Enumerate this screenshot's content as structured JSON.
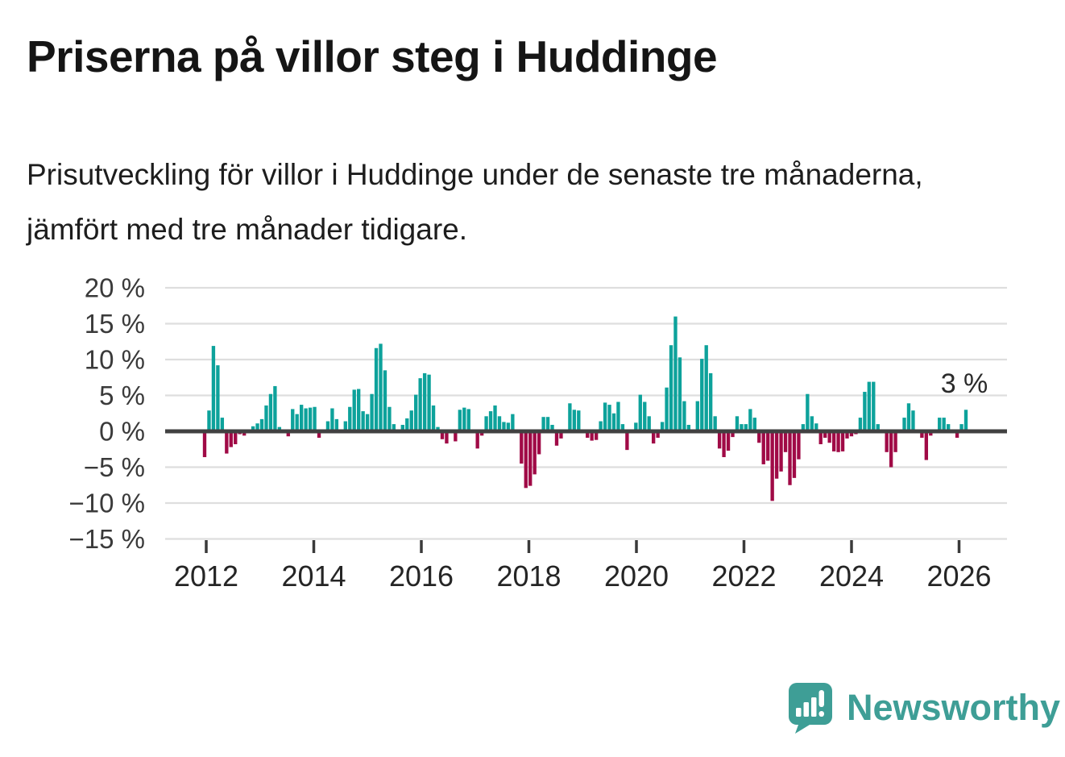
{
  "header": {
    "title": "Priserna på villor steg i Huddinge",
    "subtitle": "Prisutveckling för villor i Huddinge under de senaste tre månaderna, jämfört med tre månader tidigare."
  },
  "chart_data": {
    "type": "bar",
    "frequency": "monthly",
    "start": "2012-01",
    "unit": "%",
    "x_ticks": [
      "2012",
      "2014",
      "2016",
      "2018",
      "2020",
      "2022",
      "2024",
      "2026"
    ],
    "y_ticks": [
      "20 %",
      "15 %",
      "10 %",
      "5 %",
      "0 %",
      "−5 %",
      "−10 %",
      "−15 %"
    ],
    "y_tick_values": [
      20,
      15,
      10,
      5,
      0,
      -5,
      -10,
      -15
    ],
    "ylim": [
      -16.5,
      21
    ],
    "grid": true,
    "annotation": {
      "text": "3 %",
      "value": 3
    },
    "colors": {
      "positive": "#0da29b",
      "negative": "#a00a46"
    },
    "values": [
      -3.6,
      2.9,
      11.9,
      9.2,
      1.9,
      -3.1,
      -2.2,
      -1.8,
      -0.4,
      -0.6,
      0,
      0.7,
      1.1,
      1.7,
      3.6,
      5.2,
      6.3,
      0.6,
      0,
      -0.7,
      3.1,
      2.4,
      3.7,
      3.2,
      3.3,
      3.4,
      -0.9,
      0,
      1.4,
      3.2,
      1.7,
      0,
      1.4,
      3.4,
      5.8,
      5.9,
      2.8,
      2.4,
      5.2,
      11.6,
      12.2,
      8.5,
      3.4,
      1.0,
      0,
      0.9,
      1.8,
      2.9,
      5.1,
      7.4,
      8.1,
      7.9,
      3.6,
      0.6,
      -1.1,
      -1.7,
      0,
      -1.4,
      3.0,
      3.3,
      3.1,
      0,
      -2.4,
      -0.6,
      2.1,
      2.8,
      3.6,
      2.1,
      1.3,
      1.2,
      2.4,
      0,
      -4.5,
      -7.9,
      -7.6,
      -6.0,
      -3.2,
      2.0,
      2.0,
      0.9,
      -2.0,
      -1.0,
      0,
      3.9,
      3.0,
      2.9,
      0,
      -0.9,
      -1.3,
      -1.2,
      1.4,
      4.0,
      3.7,
      2.5,
      4.1,
      1.0,
      -2.6,
      0,
      1.2,
      5.1,
      4.1,
      2.1,
      -1.7,
      -0.9,
      1.3,
      6.1,
      12.0,
      16.0,
      10.3,
      4.2,
      0.9,
      0,
      4.2,
      10.1,
      12.0,
      8.1,
      2.1,
      -2.4,
      -3.6,
      -2.7,
      -0.8,
      2.1,
      1.0,
      1.0,
      3.1,
      1.9,
      -1.6,
      -4.6,
      -4.1,
      -9.7,
      -6.6,
      -5.6,
      -2.9,
      -7.5,
      -6.5,
      -3.9,
      1.0,
      5.2,
      2.1,
      1.1,
      -1.8,
      -0.9,
      -1.6,
      -2.8,
      -2.9,
      -2.8,
      -1.0,
      -0.7,
      -0.4,
      1.9,
      5.5,
      6.9,
      6.9,
      1.0,
      0,
      -2.9,
      -5.0,
      -2.9,
      0,
      1.9,
      3.9,
      2.9,
      0,
      -0.9,
      -4.0,
      -0.6,
      0,
      1.9,
      1.9,
      1.0,
      0,
      -0.9,
      1.0,
      3.0
    ]
  },
  "footer": {
    "brand": "Newsworthy",
    "logo_icon": "bar-chart-exclamation-bubble",
    "brand_color": "#3e9e96"
  }
}
